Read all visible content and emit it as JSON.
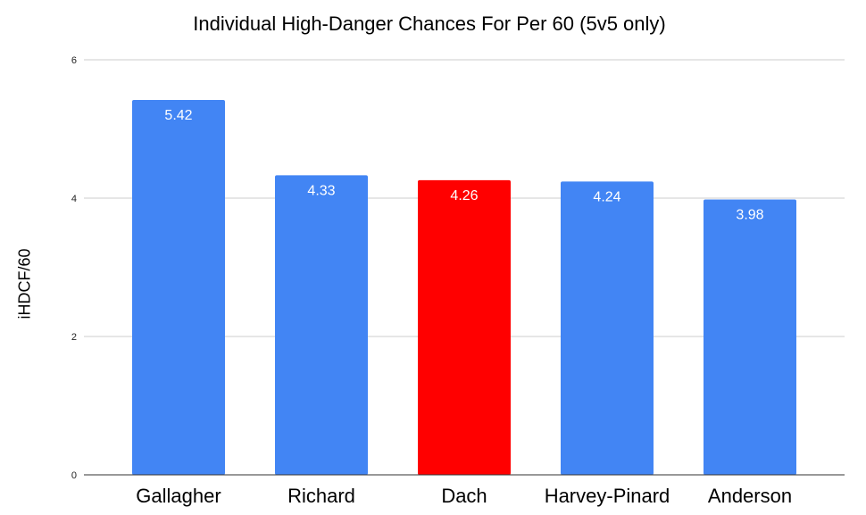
{
  "chart_data": {
    "type": "bar",
    "title": "Individual High-Danger Chances For Per 60 (5v5 only)",
    "xlabel": "",
    "ylabel": "iHDCF/60",
    "ylim": [
      0,
      6
    ],
    "yticks": [
      0,
      2,
      4,
      6
    ],
    "grid": true,
    "categories": [
      "Gallagher",
      "Richard",
      "Dach",
      "Harvey-Pinard",
      "Anderson"
    ],
    "values": [
      5.42,
      4.33,
      4.26,
      4.24,
      3.98
    ],
    "data_labels": [
      "5.42",
      "4.33",
      "4.26",
      "4.24",
      "3.98"
    ],
    "colors": [
      "#4285f4",
      "#4285f4",
      "#ff0000",
      "#4285f4",
      "#4285f4"
    ],
    "gridline_color": "#cccccc",
    "axis_color": "#333333"
  }
}
